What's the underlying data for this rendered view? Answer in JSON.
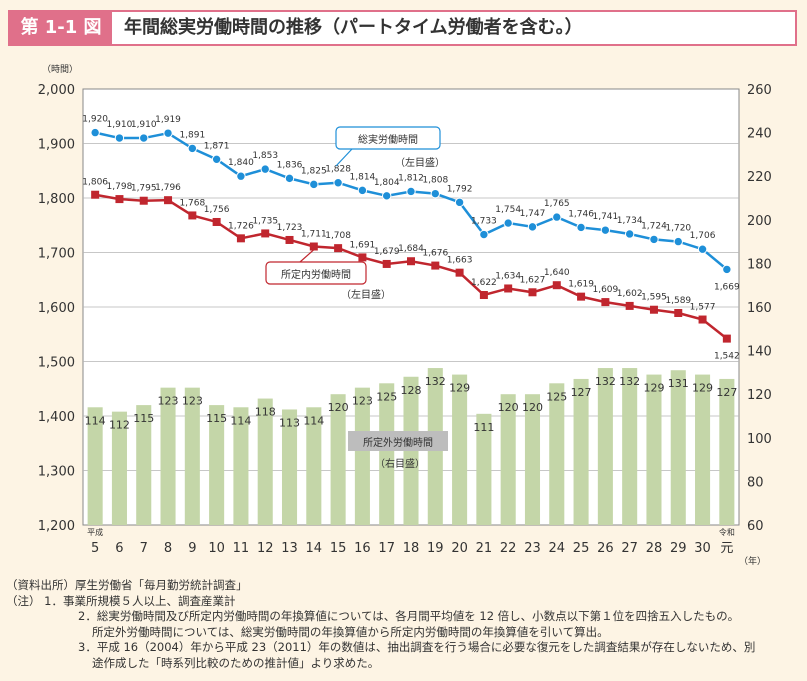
{
  "header": {
    "figure_label": "第 1-1 図",
    "title": "年間総実労働時間の推移（パートタイム労働者を含む。）"
  },
  "chart_data": {
    "type": "bar+line",
    "left_unit": "（時間）",
    "right_unit": "（年）",
    "left_axis": {
      "ylim": [
        1200,
        2000
      ],
      "ticks": [
        "1,200",
        "1,300",
        "1,400",
        "1,500",
        "1,600",
        "1,700",
        "1,800",
        "1,900",
        "2,000"
      ]
    },
    "right_axis": {
      "ylim": [
        60,
        260
      ],
      "ticks": [
        "60",
        "80",
        "100",
        "120",
        "140",
        "160",
        "180",
        "200",
        "220",
        "240",
        "260"
      ]
    },
    "grid": true,
    "categories": [
      "5",
      "6",
      "7",
      "8",
      "9",
      "10",
      "11",
      "12",
      "13",
      "14",
      "15",
      "16",
      "17",
      "18",
      "19",
      "20",
      "21",
      "22",
      "23",
      "24",
      "25",
      "26",
      "27",
      "28",
      "29",
      "30",
      "元"
    ],
    "era_labels": {
      "heisei": "平成",
      "reiwa": "令和"
    },
    "series": [
      {
        "name": "総実労働時間",
        "axis_note": "（左目盛）",
        "type": "line",
        "color": "#1e8fd8",
        "values": [
          1920,
          1910,
          1910,
          1919,
          1891,
          1871,
          1840,
          1853,
          1836,
          1825,
          1828,
          1814,
          1804,
          1812,
          1808,
          1792,
          1733,
          1754,
          1747,
          1765,
          1746,
          1741,
          1734,
          1724,
          1720,
          1706,
          1669
        ],
        "labels": [
          "1,920",
          "1,910",
          "1,910",
          "1,919",
          "1,891",
          "1,871",
          "1,840",
          "1,853",
          "1,836",
          "1,825",
          "1,828",
          "1,814",
          "1,804",
          "1,812",
          "1,808",
          "1,792",
          "1,733",
          "1,754",
          "1,747",
          "1,765",
          "1,746",
          "1,741",
          "1,734",
          "1,724",
          "1,720",
          "1,706",
          "1,669"
        ]
      },
      {
        "name": "所定内労働時間",
        "axis_note": "（左目盛）",
        "type": "line",
        "color": "#c0262e",
        "values": [
          1806,
          1798,
          1795,
          1796,
          1768,
          1756,
          1726,
          1735,
          1723,
          1711,
          1708,
          1691,
          1679,
          1684,
          1676,
          1663,
          1622,
          1634,
          1627,
          1640,
          1619,
          1609,
          1602,
          1595,
          1589,
          1577,
          1542
        ],
        "labels": [
          "1,806",
          "1,798",
          "1,795",
          "1,796",
          "1,768",
          "1,756",
          "1,726",
          "1,735",
          "1,723",
          "1,711",
          "1,708",
          "1,691",
          "1,679",
          "1,684",
          "1,676",
          "1,663",
          "1,622",
          "1,634",
          "1,627",
          "1,640",
          "1,619",
          "1,609",
          "1,602",
          "1,595",
          "1,589",
          "1,577",
          "1,542"
        ]
      },
      {
        "name": "所定外労働時間",
        "axis_note": "（右目盛）",
        "type": "bar",
        "color": "#c4d6a8",
        "values": [
          114,
          112,
          115,
          123,
          123,
          115,
          114,
          118,
          113,
          114,
          120,
          123,
          125,
          128,
          132,
          129,
          111,
          120,
          120,
          125,
          127,
          132,
          132,
          129,
          131,
          129,
          127
        ]
      }
    ]
  },
  "notes": [
    "（資料出所）厚生労働省「毎月勤労統計調査」",
    "（注） 1．事業所規模５人以上、調査産業計",
    "2．総実労働時間及び所定内労働時間の年換算値については、各月間平均値を 12 倍し、小数点以下第１位を四捨五入したもの。",
    "所定外労働時間については、総実労働時間の年換算値から所定内労働時間の年換算値を引いて算出。",
    "3．平成 16（2004）年から平成 23（2011）年の数値は、抽出調査を行う場合に必要な復元をした調査結果が存在しないため、別",
    "途作成した「時系列比較のための推計値」より求めた。"
  ]
}
